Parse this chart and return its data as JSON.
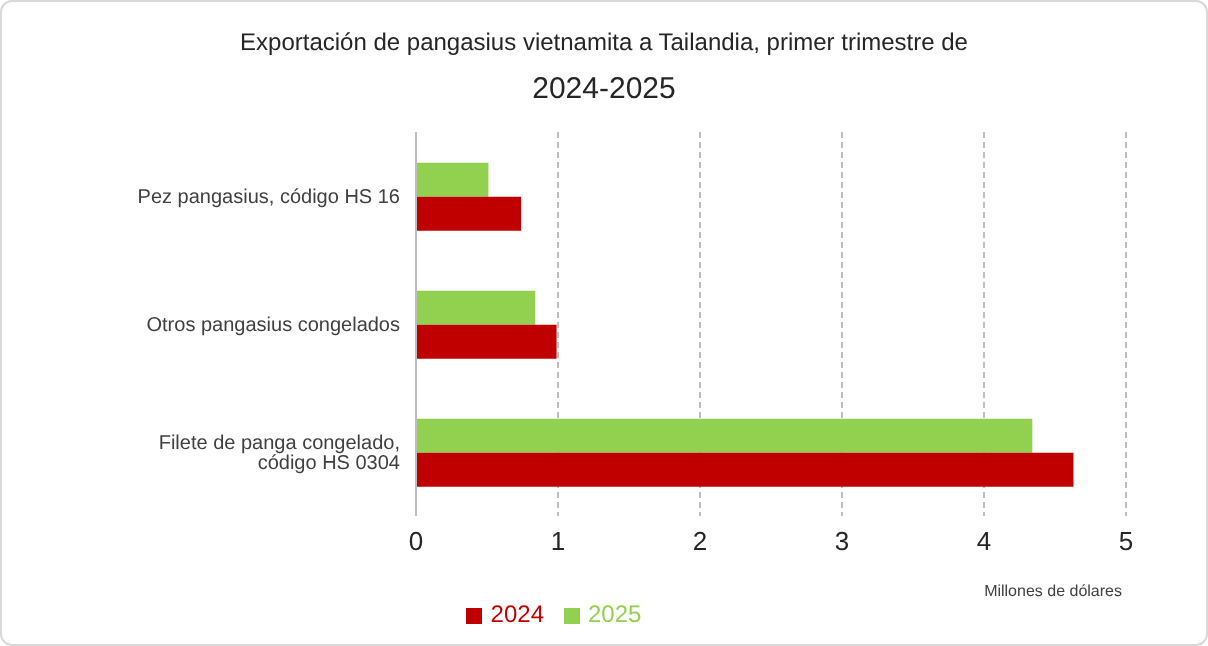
{
  "chart_data": {
    "type": "bar",
    "orientation": "horizontal",
    "title": "Exportación de pangasius vietnamita a Tailandia, primer trimestre de\n2024-2025",
    "xlabel": "Millones de dólares",
    "categories": [
      "Pez pangasius, código HS 16",
      "Otros pangasius congelados",
      "Filete de panga congelado, código HS 0304"
    ],
    "series": [
      {
        "name": "2025",
        "color": "#92d050",
        "values": [
          0.51,
          0.84,
          4.34
        ]
      },
      {
        "name": "2024",
        "color": "#c00000",
        "values": [
          0.74,
          0.99,
          4.63
        ]
      }
    ],
    "xlim": [
      0,
      5
    ],
    "xticks": [
      0,
      1,
      2,
      3,
      4,
      5
    ],
    "grid": "x",
    "legend": "bottom"
  }
}
